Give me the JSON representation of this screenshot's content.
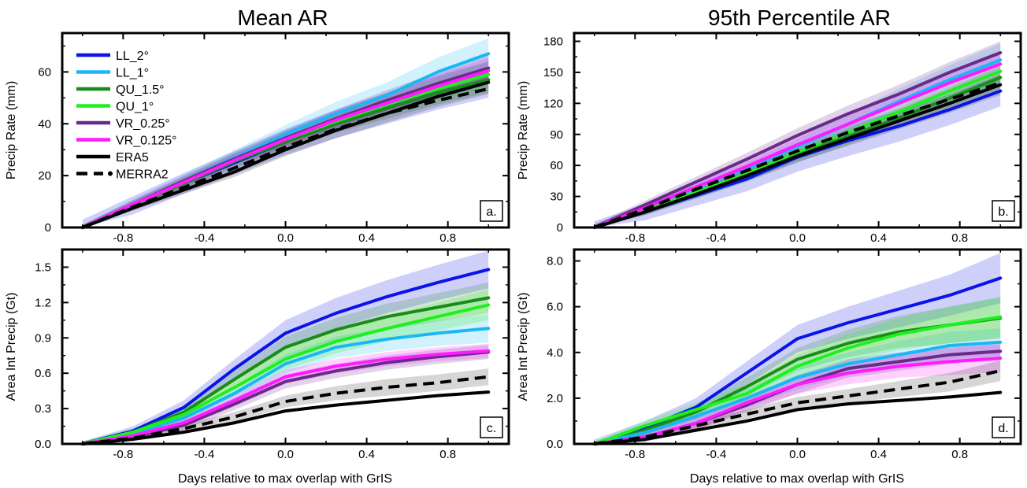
{
  "titles": [
    "Mean AR",
    "95th Percentile AR"
  ],
  "xlabel": "Days relative to max overlap with GrIS",
  "legend": [
    {
      "label": "LL_2°",
      "color": "#0a14e6",
      "dash": false,
      "marker": false
    },
    {
      "label": "LL_1°",
      "color": "#19b8f5",
      "dash": false,
      "marker": false
    },
    {
      "label": "QU_1.5°",
      "color": "#1a8c1a",
      "dash": false,
      "marker": false
    },
    {
      "label": "QU_1°",
      "color": "#1ef01e",
      "dash": false,
      "marker": false
    },
    {
      "label": "VR_0.25°",
      "color": "#6a2a8a",
      "dash": false,
      "marker": false
    },
    {
      "label": "VR_0.125°",
      "color": "#ff1aff",
      "dash": false,
      "marker": false
    },
    {
      "label": "ERA5",
      "color": "#000000",
      "dash": false,
      "marker": false
    },
    {
      "label": "MERRA2",
      "color": "#000000",
      "dash": true,
      "marker": true
    }
  ],
  "chart_data": [
    {
      "type": "line",
      "panel": "a.",
      "ylabel": "Precip Rate (mm)",
      "xlim": [
        -1.1,
        1.1
      ],
      "ylim": [
        0,
        75
      ],
      "xticks": [
        -0.8,
        -0.4,
        0.0,
        0.4,
        0.8
      ],
      "xtick_labels": [
        "-0.8",
        "-0.4",
        "0.0",
        "0.4",
        "0.8"
      ],
      "yticks": [
        0,
        20,
        40,
        60
      ],
      "ytick_labels": [
        "0",
        "20",
        "40",
        "60"
      ],
      "x": [
        -1.0,
        -0.75,
        -0.5,
        -0.25,
        0.0,
        0.25,
        0.5,
        0.75,
        1.0
      ],
      "series": [
        {
          "name": "LL_2°",
          "color": "#0a14e6",
          "values": [
            0,
            8.6,
            17,
            25,
            33,
            40,
            46,
            52,
            57
          ],
          "band": [
            3,
            3.5,
            4,
            4.5,
            5,
            5.5,
            6,
            6.5,
            7
          ]
        },
        {
          "name": "LL_1°",
          "color": "#19b8f5",
          "values": [
            0,
            9,
            18,
            27,
            36,
            44,
            51,
            60,
            67
          ],
          "band": [
            1,
            2,
            2.5,
            3,
            3.5,
            4.5,
            5,
            5.5,
            6
          ]
        },
        {
          "name": "QU_1.5°",
          "color": "#1a8c1a",
          "values": [
            0,
            8.5,
            17,
            25.5,
            33,
            40,
            46,
            52,
            57
          ],
          "band": [
            1,
            1.5,
            2,
            2.5,
            3,
            3.5,
            4,
            4.5,
            5
          ]
        },
        {
          "name": "QU_1°",
          "color": "#1ef01e",
          "values": [
            0,
            8.8,
            17.5,
            26,
            34,
            41,
            47.5,
            53.5,
            59
          ],
          "band": [
            1,
            1.5,
            2,
            2.5,
            3,
            3.5,
            4,
            4.5,
            5
          ]
        },
        {
          "name": "VR_0.25°",
          "color": "#6a2a8a",
          "values": [
            0,
            9,
            18,
            26.5,
            34.5,
            42,
            49,
            55.5,
            61.5
          ],
          "band": [
            1,
            1.5,
            2,
            2.5,
            3,
            3.5,
            4,
            4.5,
            5
          ]
        },
        {
          "name": "VR_0.125°",
          "color": "#ff1aff",
          "values": [
            0,
            9,
            17.5,
            26,
            34,
            41.5,
            48,
            54.5,
            60.5
          ],
          "band": [
            1,
            1.5,
            2,
            2.5,
            3,
            3.5,
            4,
            4.5,
            5
          ]
        },
        {
          "name": "ERA5",
          "color": "#000000",
          "values": [
            0,
            7.5,
            14.5,
            21.5,
            30,
            37.5,
            44,
            50.5,
            56
          ],
          "band": [
            0.5,
            1,
            1.5,
            2,
            2.5,
            3,
            3.5,
            4,
            4.5
          ]
        },
        {
          "name": "MERRA2",
          "color": "#000000",
          "dash": true,
          "values": [
            0,
            8,
            15.5,
            23,
            31,
            38,
            44,
            49,
            53.5
          ],
          "band": [
            0,
            0,
            0,
            0,
            0,
            0,
            0,
            0,
            0
          ]
        }
      ]
    },
    {
      "type": "line",
      "panel": "b.",
      "ylabel": "Precip Rate (mm)",
      "xlim": [
        -1.1,
        1.1
      ],
      "ylim": [
        0,
        188
      ],
      "xticks": [
        -0.8,
        -0.4,
        0.0,
        0.4,
        0.8
      ],
      "xtick_labels": [
        "-0.8",
        "-0.4",
        "0.0",
        "0.4",
        "0.8"
      ],
      "yticks": [
        0,
        30,
        60,
        90,
        120,
        150,
        180
      ],
      "ytick_labels": [
        "0",
        "30",
        "60",
        "90",
        "120",
        "150",
        "180"
      ],
      "x": [
        -1.0,
        -0.75,
        -0.5,
        -0.25,
        0.0,
        0.25,
        0.5,
        0.75,
        1.0
      ],
      "series": [
        {
          "name": "LL_2°",
          "color": "#0a14e6",
          "values": [
            0,
            15,
            31,
            47,
            68,
            84,
            98,
            114,
            132
          ],
          "band": [
            6,
            8,
            10,
            12,
            14,
            15,
            15,
            15,
            15
          ]
        },
        {
          "name": "LL_1°",
          "color": "#19b8f5",
          "values": [
            0,
            19,
            38,
            57,
            78,
            100,
            122,
            143,
            162
          ],
          "band": [
            3,
            4,
            5,
            6,
            8,
            10,
            12,
            14,
            16
          ]
        },
        {
          "name": "QU_1.5°",
          "color": "#1a8c1a",
          "values": [
            0,
            16,
            33,
            50,
            70,
            88,
            106,
            125,
            145
          ],
          "band": [
            3,
            4,
            5,
            6,
            7,
            8,
            9,
            10,
            11
          ]
        },
        {
          "name": "QU_1°",
          "color": "#1ef01e",
          "values": [
            0,
            17,
            34,
            52,
            73,
            92,
            112,
            132,
            151
          ],
          "band": [
            3,
            4,
            5,
            6,
            7,
            8,
            9,
            10,
            11
          ]
        },
        {
          "name": "VR_0.25°",
          "color": "#6a2a8a",
          "values": [
            0,
            22,
            44,
            66,
            89,
            110,
            129,
            150,
            169
          ],
          "band": [
            3,
            4,
            5,
            6,
            7,
            8,
            9,
            10,
            11
          ]
        },
        {
          "name": "VR_0.125°",
          "color": "#ff1aff",
          "values": [
            0,
            19,
            39,
            59,
            80,
            100,
            120,
            140,
            158
          ],
          "band": [
            3,
            4,
            5,
            6,
            7,
            8,
            9,
            10,
            11
          ]
        },
        {
          "name": "ERA5",
          "color": "#000000",
          "values": [
            0,
            15,
            32,
            50,
            69,
            86,
            103,
            120,
            138
          ],
          "band": [
            2,
            3,
            4,
            5,
            6,
            7,
            8,
            9,
            10
          ]
        },
        {
          "name": "MERRA2",
          "color": "#000000",
          "dash": true,
          "values": [
            0,
            18,
            37,
            55,
            74,
            92,
            108,
            124,
            140
          ],
          "band": [
            0,
            0,
            0,
            0,
            0,
            0,
            0,
            0,
            0
          ]
        }
      ]
    },
    {
      "type": "line",
      "panel": "c.",
      "ylabel": "Area Int Precip (Gt)",
      "xlim": [
        -1.1,
        1.1
      ],
      "ylim": [
        0,
        1.65
      ],
      "xticks": [
        -0.8,
        -0.4,
        0.0,
        0.4,
        0.8
      ],
      "xtick_labels": [
        "-0.8",
        "-0.4",
        "0.0",
        "0.4",
        "0.8"
      ],
      "yticks": [
        0,
        0.3,
        0.6,
        0.9,
        1.2,
        1.5
      ],
      "ytick_labels": [
        "0.0",
        "0.3",
        "0.6",
        "0.9",
        "1.2",
        "1.5"
      ],
      "x": [
        -1.0,
        -0.75,
        -0.5,
        -0.25,
        0.0,
        0.25,
        0.5,
        0.75,
        1.0
      ],
      "series": [
        {
          "name": "LL_2°",
          "color": "#0a14e6",
          "values": [
            0,
            0.11,
            0.31,
            0.64,
            0.94,
            1.11,
            1.25,
            1.37,
            1.48
          ],
          "band": [
            0.02,
            0.04,
            0.06,
            0.08,
            0.11,
            0.13,
            0.14,
            0.15,
            0.16
          ]
        },
        {
          "name": "LL_1°",
          "color": "#19b8f5",
          "values": [
            0,
            0.09,
            0.22,
            0.43,
            0.68,
            0.82,
            0.89,
            0.94,
            0.98
          ],
          "band": [
            0.02,
            0.03,
            0.04,
            0.06,
            0.08,
            0.09,
            0.1,
            0.11,
            0.12
          ]
        },
        {
          "name": "QU_1.5°",
          "color": "#1a8c1a",
          "values": [
            0,
            0.1,
            0.27,
            0.55,
            0.82,
            0.97,
            1.08,
            1.16,
            1.24
          ],
          "band": [
            0.02,
            0.03,
            0.05,
            0.07,
            0.09,
            0.1,
            0.11,
            0.12,
            0.13
          ]
        },
        {
          "name": "QU_1°",
          "color": "#1ef01e",
          "values": [
            0,
            0.1,
            0.25,
            0.48,
            0.72,
            0.87,
            0.98,
            1.08,
            1.18
          ],
          "band": [
            0.02,
            0.03,
            0.05,
            0.07,
            0.09,
            0.1,
            0.11,
            0.12,
            0.13
          ]
        },
        {
          "name": "VR_0.25°",
          "color": "#6a2a8a",
          "values": [
            0,
            0.06,
            0.16,
            0.34,
            0.53,
            0.62,
            0.69,
            0.74,
            0.78
          ],
          "band": [
            0.02,
            0.03,
            0.04,
            0.05,
            0.06,
            0.06,
            0.06,
            0.06,
            0.06
          ]
        },
        {
          "name": "VR_0.125°",
          "color": "#ff1aff",
          "values": [
            0,
            0.07,
            0.18,
            0.37,
            0.57,
            0.66,
            0.72,
            0.76,
            0.79
          ],
          "band": [
            0.02,
            0.03,
            0.04,
            0.05,
            0.06,
            0.06,
            0.06,
            0.06,
            0.06
          ]
        },
        {
          "name": "ERA5",
          "color": "#000000",
          "values": [
            0,
            0.04,
            0.1,
            0.18,
            0.28,
            0.33,
            0.37,
            0.41,
            0.44
          ],
          "band": [
            0,
            0,
            0,
            0,
            0,
            0,
            0,
            0,
            0
          ]
        },
        {
          "name": "MERRA2",
          "color": "#000000",
          "dash": true,
          "values": [
            0,
            0.05,
            0.13,
            0.23,
            0.36,
            0.43,
            0.48,
            0.52,
            0.57
          ],
          "band": [
            0.01,
            0.02,
            0.03,
            0.04,
            0.05,
            0.06,
            0.07,
            0.07,
            0.07
          ]
        }
      ]
    },
    {
      "type": "line",
      "panel": "d.",
      "ylabel": "Area Int Precip (Gt)",
      "xlim": [
        -1.1,
        1.1
      ],
      "ylim": [
        0,
        8.5
      ],
      "xticks": [
        -0.8,
        -0.4,
        0.0,
        0.4,
        0.8
      ],
      "xtick_labels": [
        "-0.8",
        "-0.4",
        "0.0",
        "0.4",
        "0.8"
      ],
      "yticks": [
        0,
        2,
        4,
        6,
        8
      ],
      "ytick_labels": [
        "0.0",
        "2.0",
        "4.0",
        "6.0",
        "8.0"
      ],
      "x": [
        -1.0,
        -0.75,
        -0.5,
        -0.25,
        0.0,
        0.25,
        0.5,
        0.75,
        1.0
      ],
      "series": [
        {
          "name": "LL_2°",
          "color": "#0a14e6",
          "values": [
            0,
            0.7,
            1.6,
            3.1,
            4.6,
            5.3,
            5.9,
            6.5,
            7.25
          ],
          "band": [
            0.2,
            0.3,
            0.4,
            0.5,
            0.6,
            0.7,
            0.8,
            0.9,
            1.1
          ]
        },
        {
          "name": "LL_1°",
          "color": "#19b8f5",
          "values": [
            0,
            0.5,
            1.2,
            2.0,
            2.9,
            3.5,
            3.9,
            4.3,
            4.45
          ],
          "band": [
            0.1,
            0.2,
            0.3,
            0.4,
            0.5,
            0.5,
            0.6,
            0.6,
            0.6
          ]
        },
        {
          "name": "QU_1.5°",
          "color": "#1a8c1a",
          "values": [
            0,
            0.6,
            1.4,
            2.5,
            3.7,
            4.4,
            4.9,
            5.2,
            5.5
          ],
          "band": [
            0.1,
            0.2,
            0.3,
            0.4,
            0.5,
            0.6,
            0.7,
            0.8,
            0.9
          ]
        },
        {
          "name": "QU_1°",
          "color": "#1ef01e",
          "values": [
            0,
            0.8,
            1.5,
            2.2,
            3.4,
            4.2,
            4.8,
            5.2,
            5.55
          ],
          "band": [
            0.1,
            0.2,
            0.3,
            0.4,
            0.5,
            0.6,
            0.7,
            0.8,
            0.9
          ]
        },
        {
          "name": "VR_0.25°",
          "color": "#6a2a8a",
          "values": [
            0,
            0.3,
            0.9,
            1.7,
            2.6,
            3.3,
            3.6,
            3.9,
            4.05
          ],
          "band": [
            0.1,
            0.2,
            0.3,
            0.3,
            0.4,
            0.4,
            0.4,
            0.4,
            0.4
          ]
        },
        {
          "name": "VR_0.125°",
          "color": "#ff1aff",
          "values": [
            0,
            0.3,
            0.9,
            1.8,
            2.6,
            3.1,
            3.4,
            3.6,
            3.75
          ],
          "band": [
            0.1,
            0.2,
            0.3,
            0.3,
            0.4,
            0.5,
            0.5,
            0.6,
            0.6
          ]
        },
        {
          "name": "ERA5",
          "color": "#000000",
          "values": [
            0,
            0.2,
            0.6,
            1.0,
            1.5,
            1.75,
            1.9,
            2.05,
            2.25
          ],
          "band": [
            0,
            0,
            0,
            0,
            0,
            0,
            0,
            0,
            0
          ]
        },
        {
          "name": "MERRA2",
          "color": "#000000",
          "dash": true,
          "values": [
            0,
            0.3,
            0.8,
            1.3,
            1.8,
            2.1,
            2.4,
            2.7,
            3.2
          ],
          "band": [
            0.05,
            0.1,
            0.15,
            0.2,
            0.25,
            0.3,
            0.35,
            0.4,
            0.45
          ]
        }
      ]
    }
  ]
}
